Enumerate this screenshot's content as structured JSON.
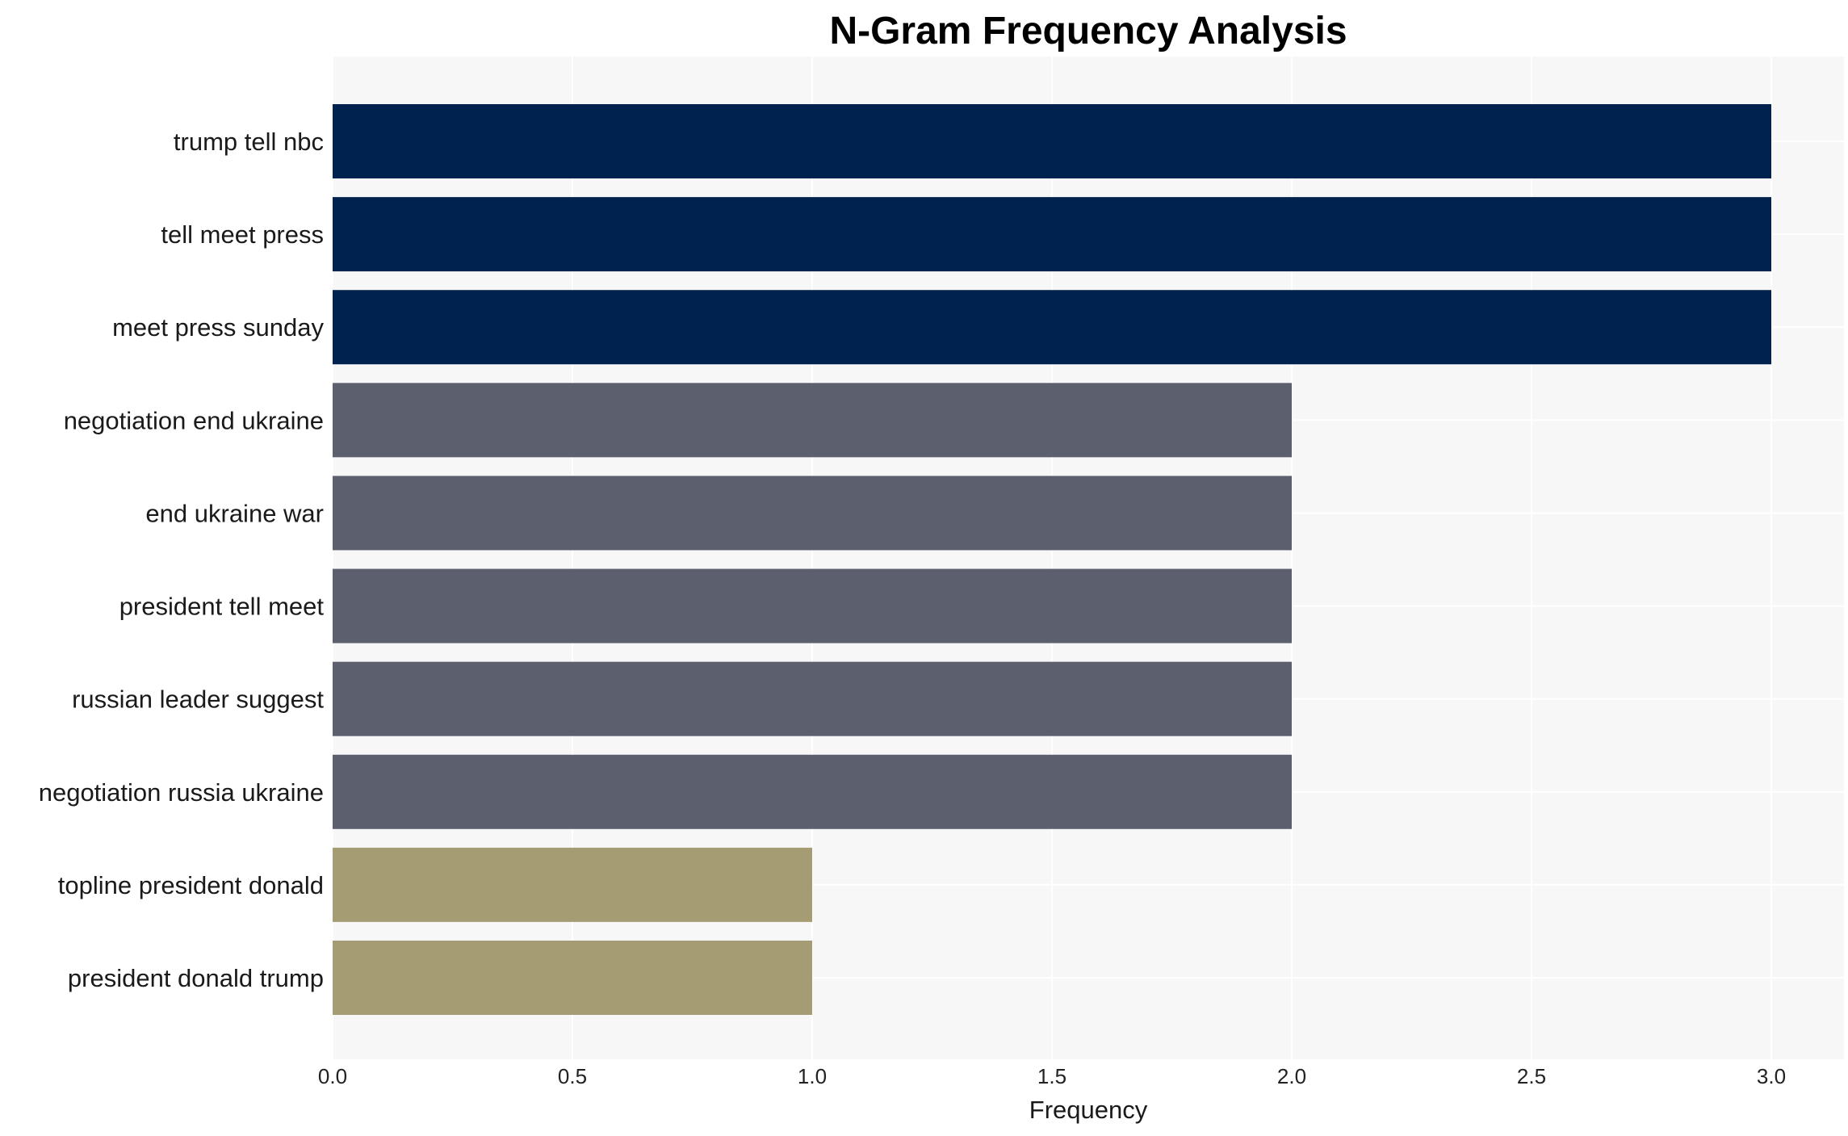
{
  "chart_data": {
    "type": "bar",
    "orientation": "horizontal",
    "title": "N-Gram Frequency Analysis",
    "xlabel": "Frequency",
    "ylabel": "",
    "xlim": [
      0,
      3.15
    ],
    "xticks": [
      "0.0",
      "0.5",
      "1.0",
      "1.5",
      "2.0",
      "2.5",
      "3.0"
    ],
    "grid": true,
    "categories": [
      "trump tell nbc",
      "tell meet press",
      "meet press sunday",
      "negotiation end ukraine",
      "end ukraine war",
      "president tell meet",
      "russian leader suggest",
      "negotiation russia ukraine",
      "topline president donald",
      "president donald trump"
    ],
    "values": [
      3,
      3,
      3,
      2,
      2,
      2,
      2,
      2,
      1,
      1
    ],
    "colors": {
      "3": "#00224e",
      "2": "#5b5f6e",
      "1": "#a59c74"
    },
    "plot_background": "#f7f7f7",
    "grid_color": "#ffffff"
  }
}
